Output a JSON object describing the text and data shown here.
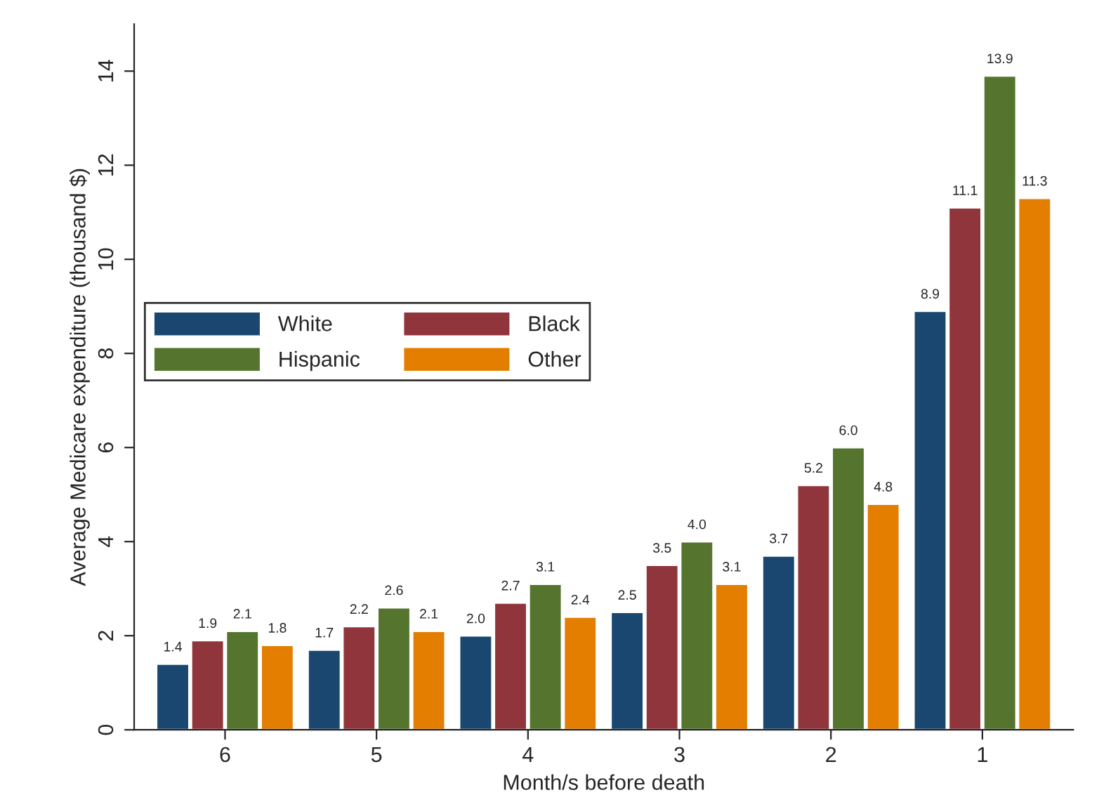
{
  "chart_data": {
    "type": "bar",
    "xlabel": "Month/s before death",
    "ylabel": "Average Medicare expenditure (thousand $)",
    "categories": [
      "6",
      "5",
      "4",
      "3",
      "2",
      "1"
    ],
    "series": [
      {
        "name": "White",
        "color": "#1a476f",
        "values": [
          1.4,
          1.7,
          2.0,
          2.5,
          3.7,
          8.9
        ],
        "value_labels": [
          "1.4",
          "1.7",
          "2.0",
          "2.5",
          "3.7",
          "8.9"
        ]
      },
      {
        "name": "Black",
        "color": "#90353b",
        "values": [
          1.9,
          2.2,
          2.7,
          3.5,
          5.2,
          11.1
        ],
        "value_labels": [
          "1.9",
          "2.2",
          "2.7",
          "3.5",
          "5.2",
          "11.1"
        ]
      },
      {
        "name": "Hispanic",
        "color": "#55752f",
        "values": [
          2.1,
          2.6,
          3.1,
          4.0,
          6.0,
          13.9
        ],
        "value_labels": [
          "2.1",
          "2.6",
          "3.1",
          "4.0",
          "6.0",
          "13.9"
        ]
      },
      {
        "name": "Other",
        "color": "#e37e00",
        "values": [
          1.8,
          2.1,
          2.4,
          3.1,
          4.8,
          11.3
        ],
        "value_labels": [
          "1.8",
          "2.1",
          "2.4",
          "3.1",
          "4.8",
          "11.3"
        ]
      }
    ],
    "ylim": [
      0,
      15
    ],
    "yticks": [
      0,
      2,
      4,
      6,
      8,
      10,
      12,
      14
    ],
    "legend": "left",
    "grid": false
  }
}
